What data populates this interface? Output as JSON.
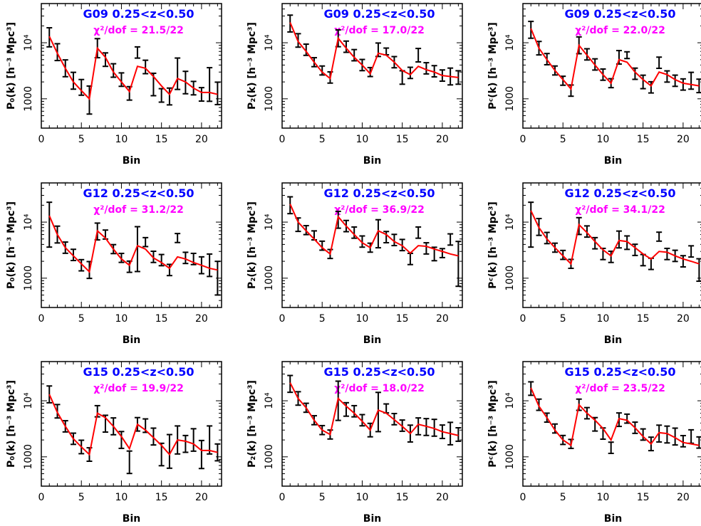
{
  "colors": {
    "model": "#ff0000",
    "data": "#000000",
    "title": "#0000ff",
    "chi2": "#ff00ff"
  },
  "chart_data": [
    {
      "type": "line",
      "field": "G09",
      "zrange": "0.25<z<0.50",
      "chi2": "χ²/dof = 21.5/22",
      "ylabel": "P₀(k) [h⁻³ Mpc³]",
      "xlabel": "Bin",
      "xlim": [
        0,
        22.5
      ],
      "ylim": [
        300,
        50000
      ],
      "yscale": "log",
      "x": [
        1,
        2,
        3,
        4,
        5,
        6,
        7,
        8,
        9,
        10,
        11,
        12,
        13,
        14,
        15,
        16,
        17,
        18,
        19,
        20,
        21,
        22
      ],
      "model": [
        13000,
        6500,
        3500,
        2000,
        1400,
        1000,
        8000,
        5500,
        3000,
        2000,
        1350,
        3800,
        3500,
        2500,
        1700,
        1200,
        2300,
        2000,
        1550,
        1300,
        1300,
        1200
      ],
      "values": [
        12500,
        6800,
        3500,
        2100,
        1600,
        950,
        8000,
        5000,
        3200,
        2200,
        1250,
        6700,
        3700,
        1800,
        1150,
        1100,
        2800,
        1950,
        1550,
        1200,
        1800,
        1250
      ],
      "errors": [
        0.17,
        0.15,
        0.15,
        0.15,
        0.14,
        0.25,
        0.17,
        0.12,
        0.12,
        0.12,
        0.12,
        0.1,
        0.12,
        0.2,
        0.12,
        0.15,
        0.28,
        0.2,
        0.12,
        0.12,
        0.3,
        0.2
      ]
    },
    {
      "type": "line",
      "field": "G09",
      "zrange": "0.25<z<0.50",
      "chi2": "χ²/dof = 17.0/22",
      "ylabel": "P₂(k) [h⁻³ Mpc³]",
      "xlabel": "Bin",
      "xlim": [
        0,
        22.5
      ],
      "ylim": [
        300,
        50000
      ],
      "yscale": "log",
      "x": [
        1,
        2,
        3,
        4,
        5,
        6,
        7,
        8,
        9,
        10,
        11,
        12,
        13,
        14,
        15,
        16,
        17,
        18,
        19,
        20,
        21,
        22
      ],
      "model": [
        23000,
        10500,
        7000,
        4500,
        3000,
        2300,
        12000,
        8000,
        5500,
        4000,
        2800,
        6500,
        6000,
        4500,
        3200,
        2700,
        3800,
        3300,
        3000,
        2600,
        2500,
        2400
      ],
      "values": [
        22000,
        11000,
        7500,
        4500,
        3200,
        2400,
        12000,
        8500,
        6000,
        4000,
        3000,
        7500,
        7000,
        4500,
        2400,
        2900,
        6000,
        3500,
        3100,
        2600,
        2500,
        2400
      ],
      "errors": [
        0.15,
        0.12,
        0.1,
        0.08,
        0.08,
        0.1,
        0.15,
        0.1,
        0.1,
        0.1,
        0.08,
        0.12,
        0.06,
        0.1,
        0.12,
        0.1,
        0.12,
        0.1,
        0.1,
        0.1,
        0.15,
        0.12
      ]
    },
    {
      "type": "line",
      "field": "G09",
      "zrange": "0.25<z<0.50",
      "chi2": "χ²/dof = 22.0/22",
      "ylabel": "Pᶜ(k) [h⁻³ Mpc³]",
      "xlabel": "Bin",
      "xlim": [
        0,
        22.5
      ],
      "ylim": [
        300,
        50000
      ],
      "yscale": "log",
      "x": [
        1,
        2,
        3,
        4,
        5,
        6,
        7,
        8,
        9,
        10,
        11,
        12,
        13,
        14,
        15,
        16,
        17,
        18,
        19,
        20,
        21,
        22
      ],
      "model": [
        18000,
        8000,
        5000,
        3200,
        2200,
        1500,
        9000,
        6000,
        4000,
        2700,
        1900,
        5000,
        4500,
        3000,
        2200,
        1700,
        3000,
        2700,
        2200,
        1900,
        1800,
        1700
      ],
      "values": [
        17000,
        8000,
        5100,
        3200,
        2100,
        1400,
        9000,
        6200,
        4100,
        2700,
        1900,
        5500,
        6000,
        2800,
        2000,
        1600,
        4400,
        2500,
        2100,
        1800,
        2100,
        1700
      ],
      "errors": [
        0.15,
        0.12,
        0.1,
        0.08,
        0.08,
        0.1,
        0.15,
        0.1,
        0.1,
        0.1,
        0.08,
        0.12,
        0.06,
        0.1,
        0.12,
        0.1,
        0.1,
        0.1,
        0.1,
        0.1,
        0.15,
        0.12
      ]
    },
    {
      "type": "line",
      "field": "G12",
      "zrange": "0.25<z<0.50",
      "chi2": "χ²/dof = 31.2/22",
      "ylabel": "P₀(k) [h⁻³ Mpc³]",
      "xlabel": "Bin",
      "xlim": [
        0,
        22.5
      ],
      "ylim": [
        300,
        50000
      ],
      "yscale": "log",
      "x": [
        1,
        2,
        3,
        4,
        5,
        6,
        7,
        8,
        9,
        10,
        11,
        12,
        13,
        14,
        15,
        16,
        17,
        18,
        19,
        20,
        21,
        22
      ],
      "model": [
        13000,
        6000,
        3500,
        2500,
        1800,
        1300,
        7000,
        5200,
        3300,
        2200,
        1700,
        3800,
        3300,
        2300,
        1900,
        1500,
        2400,
        2200,
        1900,
        1700,
        1500,
        1400
      ],
      "values": [
        9000,
        6000,
        3500,
        2600,
        1700,
        1400,
        6800,
        6000,
        3300,
        2300,
        1600,
        3300,
        4400,
        2400,
        2100,
        1400,
        5200,
        2300,
        2200,
        1700,
        1700,
        1000
      ],
      "errors": [
        0.4,
        0.15,
        0.1,
        0.1,
        0.1,
        0.15,
        0.15,
        0.08,
        0.08,
        0.08,
        0.1,
        0.4,
        0.08,
        0.1,
        0.1,
        0.1,
        0.08,
        0.1,
        0.1,
        0.15,
        0.2,
        0.3
      ]
    },
    {
      "type": "line",
      "field": "G12",
      "zrange": "0.25<z<0.50",
      "chi2": "χ²/dof = 36.9/22",
      "ylabel": "P₂(k) [h⁻³ Mpc³]",
      "xlabel": "Bin",
      "xlim": [
        0,
        22.5
      ],
      "ylim": [
        300,
        50000
      ],
      "yscale": "log",
      "x": [
        1,
        2,
        3,
        4,
        5,
        6,
        7,
        8,
        9,
        10,
        11,
        12,
        13,
        14,
        15,
        16,
        17,
        18,
        19,
        20,
        21,
        22
      ],
      "model": [
        21000,
        10000,
        7000,
        5000,
        3500,
        2700,
        12500,
        8500,
        6000,
        4300,
        3500,
        7000,
        6000,
        4500,
        3800,
        2800,
        3800,
        3700,
        3300,
        3000,
        2700,
        2500
      ],
      "values": [
        20000,
        9000,
        7200,
        5800,
        3800,
        2700,
        11000,
        8500,
        6500,
        4500,
        3500,
        6200,
        5400,
        4800,
        3900,
        2200,
        6500,
        3400,
        2700,
        2800,
        4900,
        1800
      ],
      "errors": [
        0.15,
        0.12,
        0.08,
        0.08,
        0.08,
        0.08,
        0.15,
        0.1,
        0.1,
        0.1,
        0.08,
        0.25,
        0.1,
        0.1,
        0.1,
        0.1,
        0.1,
        0.1,
        0.12,
        0.08,
        0.1,
        0.4
      ]
    },
    {
      "type": "line",
      "field": "G12",
      "zrange": "0.25<z<0.50",
      "chi2": "χ²/dof = 34.1/22",
      "ylabel": "Pᶜ(k) [h⁻³ Mpc³]",
      "xlabel": "Bin",
      "xlim": [
        0,
        22.5
      ],
      "ylim": [
        300,
        50000
      ],
      "yscale": "log",
      "x": [
        1,
        2,
        3,
        4,
        5,
        6,
        7,
        8,
        9,
        10,
        11,
        12,
        13,
        14,
        15,
        16,
        17,
        18,
        19,
        20,
        21,
        22
      ],
      "model": [
        16000,
        8000,
        5000,
        3500,
        2500,
        1800,
        9000,
        6500,
        4500,
        3200,
        2500,
        4700,
        4500,
        3500,
        2700,
        2200,
        3000,
        2900,
        2500,
        2200,
        2000,
        1800
      ],
      "values": [
        9000,
        8200,
        5200,
        3500,
        2600,
        1800,
        8500,
        6800,
        4200,
        2700,
        2400,
        4900,
        4300,
        3200,
        2100,
        1800,
        5500,
        2700,
        2500,
        2000,
        3000,
        1400
      ],
      "errors": [
        0.4,
        0.15,
        0.1,
        0.08,
        0.08,
        0.08,
        0.15,
        0.1,
        0.1,
        0.1,
        0.1,
        0.15,
        0.12,
        0.1,
        0.1,
        0.1,
        0.08,
        0.1,
        0.1,
        0.1,
        0.1,
        0.2
      ]
    },
    {
      "type": "line",
      "field": "G15",
      "zrange": "0.25<z<0.50",
      "chi2": "χ²/dof = 19.9/22",
      "ylabel": "P₀(k) [h⁻³ Mpc³]",
      "xlabel": "Bin",
      "xlim": [
        0,
        22.5
      ],
      "ylim": [
        300,
        50000
      ],
      "yscale": "log",
      "x": [
        1,
        2,
        3,
        4,
        5,
        6,
        7,
        8,
        9,
        10,
        11,
        12,
        13,
        14,
        15,
        16,
        17,
        18,
        19,
        20,
        21,
        22
      ],
      "model": [
        13000,
        6200,
        3500,
        2100,
        1500,
        1100,
        6000,
        5000,
        3500,
        2300,
        1400,
        3800,
        3000,
        2200,
        1600,
        1100,
        2000,
        1900,
        1700,
        1300,
        1300,
        1200
      ],
      "values": [
        13000,
        6500,
        3500,
        2100,
        1500,
        1100,
        6500,
        3900,
        3500,
        2000,
        800,
        3800,
        3600,
        2300,
        1100,
        1250,
        2000,
        1700,
        2000,
        1100,
        2000,
        1200
      ],
      "errors": [
        0.15,
        0.12,
        0.1,
        0.1,
        0.12,
        0.12,
        0.1,
        0.15,
        0.15,
        0.15,
        0.2,
        0.12,
        0.12,
        0.15,
        0.2,
        0.3,
        0.25,
        0.15,
        0.2,
        0.25,
        0.25,
        0.15
      ]
    },
    {
      "type": "line",
      "field": "G15",
      "zrange": "0.25<z<0.50",
      "chi2": "χ²/dof = 18.0/22",
      "ylabel": "P₂(k) [h⁻³ Mpc³]",
      "xlabel": "Bin",
      "xlim": [
        0,
        22.5
      ],
      "ylim": [
        300,
        50000
      ],
      "yscale": "log",
      "x": [
        1,
        2,
        3,
        4,
        5,
        6,
        7,
        8,
        9,
        10,
        11,
        12,
        13,
        14,
        15,
        16,
        17,
        18,
        19,
        20,
        21,
        22
      ],
      "model": [
        21000,
        11000,
        7500,
        4500,
        3000,
        2500,
        11000,
        8000,
        6000,
        4300,
        3000,
        6800,
        6000,
        4600,
        3500,
        2600,
        3800,
        3500,
        3200,
        2800,
        2600,
        2400
      ],
      "values": [
        20000,
        11000,
        7500,
        4500,
        3000,
        2500,
        10000,
        7000,
        6500,
        4500,
        3000,
        6300,
        7300,
        4700,
        3600,
        2600,
        3500,
        3400,
        3300,
        2800,
        2600,
        2500
      ],
      "errors": [
        0.15,
        0.12,
        0.08,
        0.08,
        0.08,
        0.08,
        0.35,
        0.12,
        0.1,
        0.1,
        0.12,
        0.35,
        0.08,
        0.1,
        0.1,
        0.15,
        0.15,
        0.15,
        0.15,
        0.12,
        0.2,
        0.12
      ]
    },
    {
      "type": "line",
      "field": "G15",
      "zrange": "0.25<z<0.50",
      "chi2": "χ²/dof = 23.5/22",
      "ylabel": "Pᶜ(k) [h⁻³ Mpc³]",
      "xlabel": "Bin",
      "xlim": [
        0,
        22.5
      ],
      "ylim": [
        300,
        50000
      ],
      "yscale": "log",
      "x": [
        1,
        2,
        3,
        4,
        5,
        6,
        7,
        8,
        9,
        10,
        11,
        12,
        13,
        14,
        15,
        16,
        17,
        18,
        19,
        20,
        21,
        22
      ],
      "model": [
        17000,
        8000,
        5000,
        3000,
        2000,
        1600,
        8500,
        6000,
        4500,
        3200,
        2000,
        4800,
        4500,
        3300,
        2300,
        1700,
        2700,
        2600,
        2200,
        1800,
        1700,
        1600
      ],
      "values": [
        16500,
        8500,
        5000,
        3200,
        2000,
        1700,
        8500,
        6000,
        3800,
        2600,
        1450,
        4600,
        4800,
        3300,
        2500,
        1700,
        2600,
        2500,
        2300,
        1900,
        2300,
        1800
      ],
      "errors": [
        0.12,
        0.1,
        0.08,
        0.08,
        0.08,
        0.08,
        0.1,
        0.1,
        0.12,
        0.1,
        0.1,
        0.12,
        0.08,
        0.1,
        0.1,
        0.12,
        0.15,
        0.15,
        0.15,
        0.1,
        0.12,
        0.1
      ]
    }
  ]
}
